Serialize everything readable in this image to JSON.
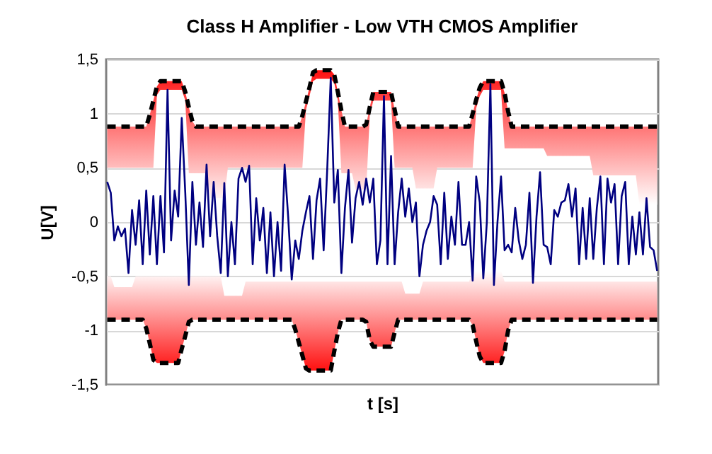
{
  "chart_data": {
    "type": "line",
    "title": "Class H Amplifier - Low VTH CMOS Amplifier",
    "xlabel": "t [s]",
    "ylabel": "U[V]",
    "categories": [
      null,
      null,
      null,
      null,
      null,
      null,
      null,
      null,
      null,
      null,
      null,
      null,
      null,
      null,
      null,
      null,
      null,
      null,
      null,
      null,
      null,
      null,
      null,
      null,
      null,
      null,
      null,
      null,
      null,
      null,
      null,
      null,
      null,
      null,
      null,
      null,
      null,
      null,
      null,
      null,
      null,
      null,
      null,
      null,
      null,
      null,
      null,
      null,
      null,
      null,
      null,
      null,
      null,
      null,
      null,
      null,
      null,
      null,
      null,
      null,
      null,
      null,
      null,
      null,
      null,
      null,
      null,
      null,
      null,
      null,
      null,
      null,
      null,
      null,
      null,
      null,
      null,
      null,
      null,
      null,
      null,
      null,
      null,
      null,
      null,
      null,
      null,
      null,
      null,
      null,
      null,
      null,
      null,
      null,
      null,
      null,
      null,
      null,
      null,
      null,
      null,
      null,
      null,
      null,
      null,
      null,
      null,
      null,
      null,
      null,
      null,
      null,
      null,
      null,
      null,
      null,
      null,
      null,
      null,
      null,
      null,
      null,
      null,
      null,
      null,
      null,
      null,
      null,
      null,
      null,
      null,
      null,
      null,
      null,
      null,
      null,
      null,
      null,
      null,
      null,
      null,
      null,
      null,
      null,
      null,
      null,
      null,
      null,
      null,
      null,
      null,
      null,
      null,
      null,
      null,
      null
    ],
    "ylim": [
      -1.5,
      1.5
    ],
    "yticks": [
      {
        "value": 1.5,
        "label": "1,5"
      },
      1,
      {
        "value": 0.5,
        "label": "0,5"
      },
      0,
      {
        "value": -0.5,
        "label": "-0,5"
      },
      -1,
      {
        "value": -1.5,
        "label": "-1,5"
      }
    ],
    "grid": "y",
    "tick_labels": "y",
    "marker": "none",
    "series": [
      {
        "color": "#000000",
        "line_style": "dashed",
        "values": [
          0.88,
          0.88,
          0.88,
          0.88,
          0.88,
          0.88,
          0.88,
          0.88,
          0.88,
          0.88,
          0.88,
          0.88,
          0.99,
          1.12,
          1.25,
          1.3,
          1.3,
          1.3,
          1.3,
          1.3,
          1.3,
          1.3,
          1.2,
          1.06,
          0.93,
          0.88,
          0.88,
          0.88,
          0.88,
          0.88,
          0.88,
          0.88,
          0.88,
          0.88,
          0.88,
          0.88,
          0.88,
          0.88,
          0.88,
          0.88,
          0.88,
          0.88,
          0.88,
          0.88,
          0.88,
          0.88,
          0.88,
          0.88,
          0.88,
          0.88,
          0.88,
          0.88,
          0.88,
          0.88,
          0.88,
          0.98,
          1.11,
          1.24,
          1.38,
          1.4,
          1.4,
          1.4,
          1.4,
          1.4,
          1.36,
          1.2,
          1.03,
          0.88,
          0.88,
          0.88,
          0.88,
          0.88,
          0.88,
          0.9,
          1.06,
          1.2,
          1.2,
          1.2,
          1.2,
          1.2,
          1.2,
          1.04,
          0.88,
          0.88,
          0.88,
          0.88,
          0.88,
          0.88,
          0.88,
          0.88,
          0.88,
          0.88,
          0.88,
          0.88,
          0.88,
          0.88,
          0.88,
          0.88,
          0.88,
          0.88,
          0.88,
          0.88,
          0.88,
          1.0,
          1.13,
          1.24,
          1.3,
          1.3,
          1.3,
          1.3,
          1.3,
          1.3,
          1.19,
          1.02,
          0.88,
          0.88,
          0.88,
          0.88,
          0.88,
          0.88,
          0.88,
          0.88,
          0.88,
          0.88,
          0.88,
          0.88,
          0.88,
          0.88,
          0.88,
          0.88,
          0.88,
          0.88,
          0.88,
          0.88,
          0.88,
          0.88,
          0.88,
          0.88,
          0.88,
          0.88,
          0.88,
          0.88,
          0.88,
          0.88,
          0.88,
          0.88,
          0.88,
          0.88,
          0.88,
          0.88,
          0.88,
          0.88,
          0.88,
          0.88,
          0.88,
          0.88
        ],
        "upper": [
          0.88,
          0.88,
          0.88,
          0.88,
          0.88,
          0.88,
          0.88,
          0.88,
          0.88,
          0.88,
          0.88,
          0.88,
          0.99,
          1.12,
          1.25,
          1.3,
          1.3,
          1.3,
          1.3,
          1.3,
          1.3,
          1.3,
          1.2,
          1.06,
          0.93,
          0.88,
          0.88,
          0.88,
          0.88,
          0.88,
          0.88,
          0.88,
          0.88,
          0.88,
          0.88,
          0.88,
          0.88,
          0.88,
          0.88,
          0.88,
          0.88,
          0.88,
          0.88,
          0.88,
          0.88,
          0.88,
          0.88,
          0.88,
          0.88,
          0.88,
          0.88,
          0.88,
          0.88,
          0.88,
          0.88,
          0.98,
          1.11,
          1.24,
          1.38,
          1.4,
          1.4,
          1.4,
          1.4,
          1.4,
          1.36,
          1.2,
          1.03,
          0.88,
          0.88,
          0.88,
          0.88,
          0.88,
          0.88,
          0.9,
          1.06,
          1.2,
          1.2,
          1.2,
          1.2,
          1.2,
          1.2,
          1.04,
          0.88,
          0.88,
          0.88,
          0.88,
          0.88,
          0.88,
          0.88,
          0.88,
          0.88,
          0.88,
          0.88,
          0.88,
          0.88,
          0.88,
          0.88,
          0.88,
          0.88,
          0.88,
          0.88,
          0.88,
          0.88,
          1.0,
          1.13,
          1.24,
          1.3,
          1.3,
          1.3,
          1.3,
          1.3,
          1.3,
          1.19,
          1.02,
          0.88,
          0.88,
          0.88,
          0.88,
          0.88,
          0.88,
          0.88,
          0.88,
          0.88,
          0.88,
          0.88,
          0.88,
          0.88,
          0.88,
          0.88,
          0.88,
          0.88,
          0.88,
          0.88,
          0.88,
          0.88,
          0.88,
          0.88,
          0.88,
          0.88,
          0.88,
          0.88,
          0.88,
          0.88,
          0.88,
          0.88,
          0.88,
          0.88,
          0.88,
          0.88,
          0.88,
          0.88,
          0.88,
          0.88,
          0.88,
          0.88,
          0.88
        ],
        "lower": [
          0.5,
          0.5,
          0.5,
          0.5,
          0.5,
          0.5,
          0.5,
          0.5,
          0.5,
          0.5,
          0.5,
          0.5,
          0.5,
          0.5,
          1.17,
          1.22,
          1.22,
          1.22,
          1.22,
          1.22,
          1.22,
          1.22,
          1.12,
          0.45,
          0.45,
          0.45,
          0.45,
          0.45,
          0.45,
          0.22,
          0.22,
          0.22,
          0.22,
          0.22,
          0.5,
          0.5,
          0.5,
          0.5,
          0.5,
          0.5,
          0.5,
          0.5,
          0.5,
          0.5,
          0.5,
          0.5,
          0.5,
          0.5,
          0.5,
          0.5,
          0.5,
          0.5,
          0.5,
          0.5,
          0.5,
          0.5,
          1.03,
          1.16,
          1.3,
          1.32,
          1.32,
          1.32,
          1.32,
          1.32,
          1.28,
          1.12,
          0.45,
          0.45,
          0.45,
          0.45,
          0.3,
          0.3,
          0.3,
          0.3,
          0.98,
          1.12,
          1.12,
          1.12,
          1.12,
          1.12,
          1.12,
          0.5,
          0.5,
          0.5,
          0.5,
          0.5,
          0.5,
          0.31,
          0.31,
          0.31,
          0.31,
          0.31,
          0.31,
          0.5,
          0.5,
          0.5,
          0.5,
          0.5,
          0.5,
          0.5,
          0.5,
          0.5,
          0.5,
          0.5,
          1.05,
          1.16,
          1.22,
          1.22,
          1.22,
          1.22,
          1.22,
          1.22,
          0.68,
          0.68,
          0.68,
          0.68,
          0.68,
          0.68,
          0.68,
          0.68,
          0.68,
          0.68,
          0.68,
          0.68,
          0.61,
          0.61,
          0.61,
          0.61,
          0.61,
          0.61,
          0.61,
          0.61,
          0.61,
          0.61,
          0.61,
          0.61,
          0.61,
          0.43,
          0.43,
          0.43,
          0.43,
          0.43,
          0.43,
          0.43,
          0.43,
          0.43,
          0.43,
          0.43,
          0.43,
          0.43,
          0.16,
          0.16,
          0.16,
          0.16,
          0.16,
          0.16
        ]
      },
      {
        "color": "#000000",
        "line_style": "dashed",
        "values": [
          -0.9,
          -0.9,
          -0.9,
          -0.9,
          -0.9,
          -0.9,
          -0.9,
          -0.9,
          -0.9,
          -0.9,
          -0.9,
          -0.98,
          -1.12,
          -1.27,
          -1.3,
          -1.3,
          -1.3,
          -1.3,
          -1.3,
          -1.3,
          -1.3,
          -1.17,
          -1.05,
          -0.92,
          -0.9,
          -0.9,
          -0.9,
          -0.9,
          -0.9,
          -0.9,
          -0.9,
          -0.9,
          -0.9,
          -0.9,
          -0.9,
          -0.9,
          -0.9,
          -0.9,
          -0.9,
          -0.9,
          -0.9,
          -0.9,
          -0.9,
          -0.9,
          -0.9,
          -0.9,
          -0.9,
          -0.9,
          -0.9,
          -0.9,
          -0.9,
          -0.9,
          -0.9,
          -0.99,
          -1.11,
          -1.23,
          -1.35,
          -1.37,
          -1.37,
          -1.37,
          -1.37,
          -1.37,
          -1.37,
          -1.37,
          -1.19,
          -1.02,
          -0.9,
          -0.9,
          -0.9,
          -0.9,
          -0.9,
          -0.9,
          -0.9,
          -0.92,
          -1.09,
          -1.15,
          -1.15,
          -1.15,
          -1.15,
          -1.15,
          -1.15,
          -1.02,
          -0.9,
          -0.9,
          -0.9,
          -0.9,
          -0.9,
          -0.9,
          -0.9,
          -0.9,
          -0.9,
          -0.9,
          -0.9,
          -0.9,
          -0.9,
          -0.9,
          -0.9,
          -0.9,
          -0.9,
          -0.9,
          -0.9,
          -0.9,
          -0.9,
          -0.95,
          -1.1,
          -1.24,
          -1.3,
          -1.3,
          -1.3,
          -1.3,
          -1.3,
          -1.3,
          -1.19,
          -1.0,
          -0.9,
          -0.9,
          -0.9,
          -0.9,
          -0.9,
          -0.9,
          -0.9,
          -0.9,
          -0.9,
          -0.9,
          -0.9,
          -0.9,
          -0.9,
          -0.9,
          -0.9,
          -0.9,
          -0.9,
          -0.9,
          -0.9,
          -0.9,
          -0.9,
          -0.9,
          -0.9,
          -0.9,
          -0.9,
          -0.9,
          -0.9,
          -0.9,
          -0.9,
          -0.9,
          -0.9,
          -0.9,
          -0.9,
          -0.9,
          -0.9,
          -0.9,
          -0.9,
          -0.9,
          -0.9,
          -0.9,
          -0.9,
          -0.9
        ],
        "lower": [
          -0.9,
          -0.9,
          -0.9,
          -0.9,
          -0.9,
          -0.9,
          -0.9,
          -0.9,
          -0.9,
          -0.9,
          -0.9,
          -0.98,
          -1.12,
          -1.27,
          -1.3,
          -1.3,
          -1.3,
          -1.3,
          -1.3,
          -1.3,
          -1.3,
          -1.17,
          -1.05,
          -0.92,
          -0.9,
          -0.9,
          -0.9,
          -0.9,
          -0.9,
          -0.9,
          -0.9,
          -0.9,
          -0.9,
          -0.9,
          -0.9,
          -0.9,
          -0.9,
          -0.9,
          -0.9,
          -0.9,
          -0.9,
          -0.9,
          -0.9,
          -0.9,
          -0.9,
          -0.9,
          -0.9,
          -0.9,
          -0.9,
          -0.9,
          -0.9,
          -0.9,
          -0.9,
          -0.99,
          -1.11,
          -1.23,
          -1.35,
          -1.37,
          -1.37,
          -1.37,
          -1.37,
          -1.37,
          -1.37,
          -1.37,
          -1.19,
          -1.02,
          -0.9,
          -0.9,
          -0.9,
          -0.9,
          -0.9,
          -0.9,
          -0.9,
          -0.92,
          -1.09,
          -1.15,
          -1.15,
          -1.15,
          -1.15,
          -1.15,
          -1.15,
          -1.02,
          -0.9,
          -0.9,
          -0.9,
          -0.9,
          -0.9,
          -0.9,
          -0.9,
          -0.9,
          -0.9,
          -0.9,
          -0.9,
          -0.9,
          -0.9,
          -0.9,
          -0.9,
          -0.9,
          -0.9,
          -0.9,
          -0.9,
          -0.9,
          -0.9,
          -0.95,
          -1.1,
          -1.24,
          -1.3,
          -1.3,
          -1.3,
          -1.3,
          -1.3,
          -1.3,
          -1.19,
          -1.0,
          -0.9,
          -0.9,
          -0.9,
          -0.9,
          -0.9,
          -0.9,
          -0.9,
          -0.9,
          -0.9,
          -0.9,
          -0.9,
          -0.9,
          -0.9,
          -0.9,
          -0.9,
          -0.9,
          -0.9,
          -0.9,
          -0.9,
          -0.9,
          -0.9,
          -0.9,
          -0.9,
          -0.9,
          -0.9,
          -0.9,
          -0.9,
          -0.9,
          -0.9,
          -0.9,
          -0.9,
          -0.9,
          -0.9,
          -0.9,
          -0.9,
          -0.9,
          -0.9,
          -0.9,
          -0.9,
          -0.9,
          -0.9,
          -0.9
        ],
        "upper": [
          -0.5,
          -0.5,
          -0.6,
          -0.6,
          -0.6,
          -0.6,
          -0.6,
          -0.6,
          -0.5,
          -0.5,
          -0.5,
          -0.5,
          -0.5,
          -0.5,
          -0.5,
          -0.5,
          -0.5,
          -0.5,
          -0.5,
          -0.5,
          -0.5,
          -0.5,
          -0.5,
          -0.5,
          -0.5,
          -0.5,
          -0.5,
          -0.5,
          -0.5,
          -0.5,
          -0.5,
          -0.5,
          -0.5,
          -0.68,
          -0.68,
          -0.68,
          -0.68,
          -0.68,
          -0.68,
          -0.55,
          -0.55,
          -0.55,
          -0.55,
          -0.55,
          -0.55,
          -0.55,
          -0.55,
          -0.55,
          -0.55,
          -0.55,
          -0.55,
          -0.55,
          -0.55,
          -0.55,
          -0.55,
          -0.55,
          -0.55,
          -0.55,
          -0.55,
          -0.55,
          -0.55,
          -0.55,
          -0.55,
          -0.55,
          -0.55,
          -0.55,
          -0.55,
          -0.55,
          -0.55,
          -0.55,
          -0.55,
          -0.55,
          -0.55,
          -0.55,
          -0.55,
          -0.55,
          -0.55,
          -0.55,
          -0.55,
          -0.55,
          -0.55,
          -0.55,
          -0.55,
          -0.55,
          -0.66,
          -0.66,
          -0.66,
          -0.66,
          -0.66,
          -0.55,
          -0.55,
          -0.55,
          -0.55,
          -0.55,
          -0.55,
          -0.55,
          -0.55,
          -0.55,
          -0.55,
          -0.55,
          -0.55,
          -0.55,
          -0.55,
          -0.45,
          -0.45,
          -0.45,
          -0.45,
          -0.45,
          -0.45,
          -0.45,
          -0.45,
          -0.45,
          -0.55,
          -0.55,
          -0.55,
          -0.55,
          -0.55,
          -0.55,
          -0.55,
          -0.55,
          -0.55,
          -0.55,
          -0.55,
          -0.55,
          -0.55,
          -0.55,
          -0.55,
          -0.55,
          -0.55,
          -0.55,
          -0.55,
          -0.55,
          -0.55,
          -0.55,
          -0.55,
          -0.55,
          -0.55,
          -0.55,
          -0.55,
          -0.55,
          -0.55,
          -0.55,
          -0.55,
          -0.55,
          -0.55,
          -0.55,
          -0.55,
          -0.55,
          -0.55,
          -0.55,
          -0.55,
          -0.55,
          -0.55,
          -0.55,
          -0.55,
          -0.55
        ]
      },
      {
        "color": "#000080",
        "line_style": "solid",
        "values": [
          0.37,
          0.27,
          -0.17,
          -0.04,
          -0.13,
          -0.06,
          -0.47,
          0.11,
          -0.21,
          0.2,
          -0.39,
          0.29,
          -0.3,
          0.24,
          -0.39,
          0.24,
          -0.28,
          1.22,
          -0.17,
          0.29,
          0.05,
          0.96,
          0.27,
          -0.58,
          0.37,
          -0.21,
          0.18,
          -0.23,
          0.53,
          -0.13,
          0.37,
          -0.13,
          -0.47,
          0.36,
          -0.5,
          0,
          -0.39,
          0.4,
          0.5,
          0.37,
          0.52,
          -0.39,
          0.22,
          -0.17,
          0.13,
          -0.47,
          0.09,
          -0.5,
          0,
          -0.45,
          0.53,
          0.05,
          -0.53,
          -0.17,
          -0.34,
          -0.08,
          0.09,
          0.24,
          -0.34,
          0.2,
          0.4,
          -0.26,
          0.48,
          1.33,
          0.18,
          0.48,
          -0.47,
          0.13,
          0.48,
          -0.19,
          0.22,
          0.37,
          0.16,
          0.4,
          0.18,
          0.4,
          -0.39,
          -0.17,
          1.16,
          -0.39,
          0.61,
          -0.39,
          0.09,
          0.4,
          0.05,
          0.31,
          0,
          0.18,
          -0.5,
          -0.21,
          -0.08,
          0,
          0.24,
          0.16,
          -0.39,
          0.27,
          -0.34,
          0.05,
          -0.21,
          0.37,
          -0.21,
          -0.21,
          0,
          -0.54,
          0.42,
          0.18,
          -0.52,
          0,
          1.27,
          -0.58,
          0,
          0.42,
          -0.26,
          -0.21,
          -0.28,
          0.13,
          -0.17,
          -0.34,
          -0.21,
          0.27,
          -0.56,
          0.05,
          0.46,
          -0.21,
          -0.23,
          -0.39,
          0.11,
          0.05,
          0.18,
          0.2,
          0.35,
          0.05,
          0.31,
          -0.39,
          0.13,
          -0.34,
          0.22,
          -0.34,
          0.13,
          0.42,
          -0.39,
          0.4,
          0.18,
          0.35,
          -0.39,
          0.24,
          0.37,
          -0.39,
          0.05,
          -0.3,
          0.09,
          -0.3,
          0.22,
          -0.23,
          -0.26,
          -0.45
        ]
      }
    ]
  }
}
